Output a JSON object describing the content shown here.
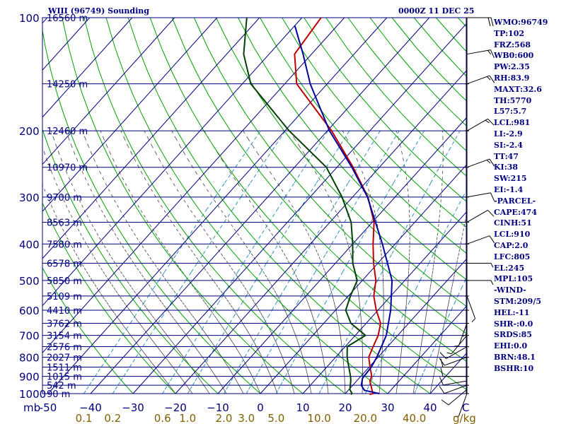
{
  "header": {
    "title": "WIII (96749) Sounding",
    "datetime": "0000Z 11 DEC 25"
  },
  "axes": {
    "pressure_unit": "mb",
    "temp_unit": "C",
    "mixing_unit": "g/kg"
  },
  "chart_data": {
    "type": "line",
    "title": "WIII (96749) Sounding",
    "subtitle": "0000Z 11 DEC 25",
    "xlabel": "C",
    "ylabel": "mb",
    "xlim": [
      -50,
      50
    ],
    "ylim": [
      1000,
      100
    ],
    "y_scale": "log",
    "pressure_ticks": [
      100,
      200,
      300,
      400,
      500,
      600,
      700,
      800,
      900,
      1000
    ],
    "temp_ticks": [
      -50,
      -40,
      -30,
      -20,
      -10,
      0,
      10,
      20,
      30,
      40
    ],
    "mixing_ratio_ticks": [
      0.1,
      0.2,
      0.6,
      1.0,
      2.0,
      3.0,
      5.0,
      10.0,
      20.0,
      40.0
    ],
    "mixing_ratio_labels": [
      "0.1",
      "0.2",
      "0.6",
      "1.0",
      "2.0",
      "3.0",
      "5.0",
      "10.0",
      "20.0",
      "40.0"
    ],
    "height_labels": [
      {
        "p": 100,
        "text": "16560 m"
      },
      {
        "p": 150,
        "text": "14250 m"
      },
      {
        "p": 200,
        "text": "12460 m"
      },
      {
        "p": 250,
        "text": "10970 m"
      },
      {
        "p": 300,
        "text": "9700 m"
      },
      {
        "p": 350,
        "text": "8563 m"
      },
      {
        "p": 400,
        "text": "7580 m"
      },
      {
        "p": 450,
        "text": "6578 m"
      },
      {
        "p": 500,
        "text": "5850 m"
      },
      {
        "p": 550,
        "text": "5109 m"
      },
      {
        "p": 600,
        "text": "4410 m"
      },
      {
        "p": 650,
        "text": "3762 m"
      },
      {
        "p": 700,
        "text": "3154 m"
      },
      {
        "p": 750,
        "text": "2576 m"
      },
      {
        "p": 800,
        "text": "2027 m"
      },
      {
        "p": 850,
        "text": "1511 m"
      },
      {
        "p": 900,
        "text": "1015 m"
      },
      {
        "p": 950,
        "text": "542 m"
      },
      {
        "p": 1000,
        "text": "90 m"
      }
    ],
    "series": [
      {
        "name": "Temperature",
        "color": "#c00000",
        "points": [
          [
            1005,
            25.9
          ],
          [
            1000,
            26.5
          ],
          [
            975,
            25.4
          ],
          [
            925,
            23.1
          ],
          [
            900,
            22.6
          ],
          [
            850,
            20.2
          ],
          [
            800,
            17.8
          ],
          [
            750,
            16.6
          ],
          [
            700,
            15.4
          ],
          [
            650,
            13.4
          ],
          [
            600,
            9.6
          ],
          [
            550,
            6.0
          ],
          [
            500,
            3.2
          ],
          [
            450,
            -1.0
          ],
          [
            400,
            -5.2
          ],
          [
            350,
            -9.6
          ],
          [
            300,
            -16.4
          ],
          [
            250,
            -26.2
          ],
          [
            200,
            -39.0
          ],
          [
            150,
            -57.2
          ],
          [
            125,
            -64.0
          ],
          [
            100,
            -65.5
          ]
        ]
      },
      {
        "name": "Dewpoint",
        "color": "#004000",
        "points": [
          [
            1005,
            21.5
          ],
          [
            1000,
            21.6
          ],
          [
            975,
            20.2
          ],
          [
            925,
            18.6
          ],
          [
            900,
            17.6
          ],
          [
            850,
            15.2
          ],
          [
            800,
            12.7
          ],
          [
            750,
            10.5
          ],
          [
            700,
            12.4
          ],
          [
            650,
            6.4
          ],
          [
            600,
            2.4
          ],
          [
            550,
            0.5
          ],
          [
            500,
            -1.2
          ],
          [
            450,
            -5.9
          ],
          [
            400,
            -10.0
          ],
          [
            350,
            -15.0
          ],
          [
            300,
            -22.5
          ],
          [
            250,
            -32.5
          ],
          [
            200,
            -49.0
          ],
          [
            150,
            -68.0
          ],
          [
            125,
            -76.0
          ],
          [
            100,
            -83.0
          ]
        ]
      },
      {
        "name": "Parcel",
        "color": "#0000a0",
        "points": [
          [
            1000,
            28.0
          ],
          [
            980,
            23.8
          ],
          [
            950,
            22.0
          ],
          [
            910,
            20.8
          ],
          [
            850,
            20.5
          ],
          [
            800,
            19.7
          ],
          [
            700,
            17.3
          ],
          [
            600,
            13.0
          ],
          [
            500,
            7.0
          ],
          [
            400,
            -3.0
          ],
          [
            300,
            -16.5
          ],
          [
            250,
            -26.5
          ],
          [
            200,
            -39.5
          ],
          [
            150,
            -54.0
          ],
          [
            125,
            -62.0
          ],
          [
            105,
            -70.0
          ]
        ]
      }
    ]
  },
  "wind_barbs": [
    {
      "p": 1000,
      "dir": 200,
      "spd": 5
    },
    {
      "p": 975,
      "dir": 230,
      "spd": 10
    },
    {
      "p": 950,
      "dir": 250,
      "spd": 10
    },
    {
      "p": 925,
      "dir": 260,
      "spd": 10
    },
    {
      "p": 900,
      "dir": 270,
      "spd": 10
    },
    {
      "p": 850,
      "dir": 270,
      "spd": 10
    },
    {
      "p": 800,
      "dir": 250,
      "spd": 10
    },
    {
      "p": 750,
      "dir": 240,
      "spd": 10
    },
    {
      "p": 700,
      "dir": 220,
      "spd": 5
    },
    {
      "p": 650,
      "dir": 200,
      "spd": 5
    },
    {
      "p": 600,
      "dir": 180,
      "spd": 5
    },
    {
      "p": 550,
      "dir": 160,
      "spd": 5
    },
    {
      "p": 500,
      "dir": 90,
      "spd": 5
    },
    {
      "p": 450,
      "dir": 90,
      "spd": 5
    },
    {
      "p": 400,
      "dir": 70,
      "spd": 10
    },
    {
      "p": 350,
      "dir": 60,
      "spd": 10
    },
    {
      "p": 300,
      "dir": 80,
      "spd": 10
    },
    {
      "p": 250,
      "dir": 70,
      "spd": 15
    },
    {
      "p": 200,
      "dir": 60,
      "spd": 15
    },
    {
      "p": 150,
      "dir": 70,
      "spd": 15
    },
    {
      "p": 125,
      "dir": 80,
      "spd": 15
    },
    {
      "p": 100,
      "dir": 90,
      "spd": 20
    }
  ],
  "indices": [
    "WMO:96749",
    "TP:102",
    "FRZ:568",
    "WB0:600",
    "PW:2.35",
    "RH:83.9",
    "MAXT:32.6",
    "TH:5770",
    "L57:5.7",
    "LCL:981",
    "LI:-2.9",
    "SI:-2.4",
    "TT:47",
    "KI:38",
    "SW:215",
    "EI:-1.4",
    "-PARCEL-",
    "CAPE:474",
    "CINH:51",
    "LCL:910",
    "CAP:2.0",
    "LFC:805",
    "EL:245",
    "MPL:105",
    "-WIND-",
    "STM:209/5",
    "HEL:-11",
    "SHR-:0.0",
    "SRDS:85",
    "EHI:0.0",
    "BRN:48.1",
    "BSHR:10"
  ],
  "colors": {
    "isobar": "#000080",
    "isotherm": "#000080",
    "dry_adiabat": "#00a000",
    "moist_adiabat": "#404040",
    "mixing_ratio": "#3090c0",
    "temp_tick": "#000080",
    "mixing_tick": "#806000",
    "pressure_label": "#000080",
    "height_label": "#000080"
  }
}
